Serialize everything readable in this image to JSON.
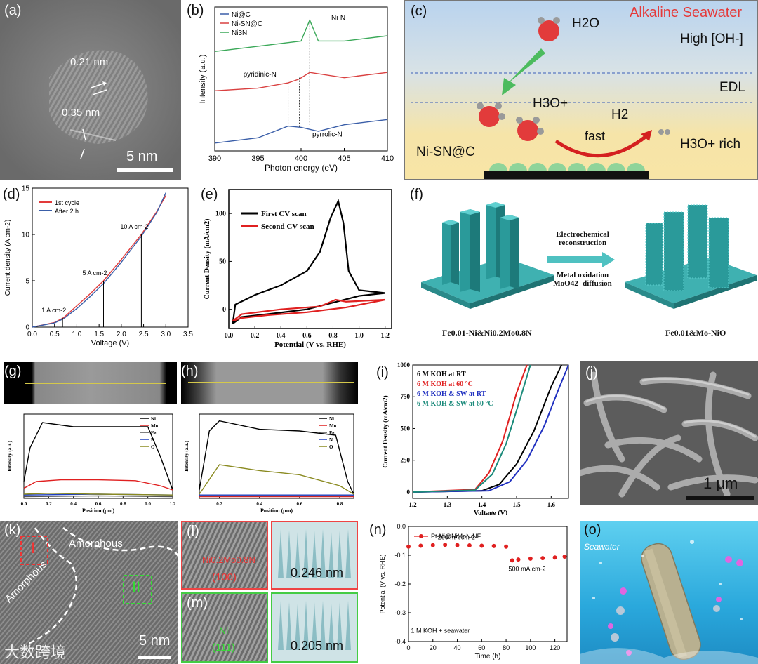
{
  "panels": {
    "a": {
      "label": "(a)",
      "spacing1": "0.21 nm",
      "spacing2": "0.35 nm",
      "scale": "5 nm"
    },
    "b": {
      "label": "(b)",
      "legend": [
        "Ni@C",
        "Ni-SN@C",
        "Ni3N"
      ],
      "annotations": [
        "Ni-N",
        "pyridinic-N",
        "pyrrolic-N"
      ],
      "xlabel": "Photon energy (eV)",
      "ylabel": "Intensity (a.u.)",
      "xticks": [
        "390",
        "395",
        "400",
        "405",
        "410"
      ]
    },
    "c": {
      "label": "(c)",
      "title": "Alkaline Seawater",
      "h2o": "H2O",
      "high_oh": "High [OH-]",
      "edl": "EDL",
      "h3o": "H3O+",
      "h2": "H2",
      "fast": "fast",
      "catalyst": "Ni-SN@C",
      "h3o_rich": "H3O+ rich"
    },
    "d": {
      "label": "(d)",
      "legend": [
        "1st cycle",
        "After 2 h"
      ],
      "annotations": [
        "10 A cm-2",
        "5 A cm-2",
        "1 A cm-2"
      ],
      "xlabel": "Voltage (V)",
      "ylabel": "Current density (A cm-2)",
      "xticks": [
        "0.0",
        "0.5",
        "1.0",
        "1.5",
        "2.0",
        "2.5",
        "3.0",
        "3.5"
      ],
      "yticks": [
        "0",
        "5",
        "10",
        "15"
      ]
    },
    "e": {
      "label": "(e)",
      "legend": [
        "First CV scan",
        "Second CV scan"
      ],
      "xlabel": "Potential (V vs. RHE)",
      "ylabel": "Current Density (mA/cm2)",
      "xticks": [
        "0.0",
        "0.2",
        "0.4",
        "0.6",
        "0.8",
        "1.0",
        "1.2"
      ],
      "yticks": [
        "0",
        "50",
        "100"
      ]
    },
    "f": {
      "label": "(f)",
      "arrow_top": "Electrochemical reconstruction",
      "arrow_bottom": "Metal oxidation MoO42- diffusion",
      "left_caption": "Fe0.01-Ni&Ni0.2Mo0.8N",
      "right_caption": "Fe0.01&Mo-NiO"
    },
    "g": {
      "label": "(g)",
      "legend": [
        "Ni",
        "Mo",
        "Fe",
        "N",
        "O"
      ],
      "xlabel": "Position (μm)",
      "ylabel": "Intensity (a.u.)",
      "xticks": [
        "0.0",
        "0.2",
        "0.4",
        "0.6",
        "0.8",
        "1.0",
        "1.2"
      ]
    },
    "h": {
      "label": "(h)",
      "legend": [
        "Ni",
        "Mo",
        "Fe",
        "N",
        "O"
      ],
      "xlabel": "Position (μm)",
      "ylabel": "Intensity (a.u.)",
      "xticks": [
        "0.2",
        "0.4",
        "0.6",
        "0.8"
      ]
    },
    "i": {
      "label": "(i)",
      "legend": [
        "6 M KOH at RT",
        "6 M KOH at 60 °C",
        "6 M KOH & SW at RT",
        "6 M KOH & SW at 60 °C"
      ],
      "xlabel": "Voltage (V)",
      "ylabel": "Current Density (mA/cm2)",
      "xticks": [
        "1.2",
        "1.3",
        "1.4",
        "1.5",
        "1.6"
      ],
      "yticks": [
        "0",
        "250",
        "500",
        "750",
        "1000"
      ]
    },
    "j": {
      "label": "(j)",
      "scale": "1 μm"
    },
    "k": {
      "label": "(k)",
      "amorphous1": "Amorphous",
      "amorphous2": "Amorphous",
      "box1": "I",
      "box2": "II",
      "scale": "5 nm"
    },
    "l": {
      "label": "(l)",
      "phase": "Ni0.2Mo0.8N",
      "plane": "(100)",
      "spacing": "0.246 nm"
    },
    "m": {
      "label": "(m)",
      "phase": "Ni",
      "plane": "(111)",
      "spacing": "0.205 nm"
    },
    "n": {
      "label": "(n)",
      "legend": "Pt-Ni@NiMoN/NF",
      "ann1": "200 mA cm-2",
      "ann2": "500 mA cm-2",
      "electrolyte": "1 M KOH + seawater",
      "xlabel": "Time (h)",
      "ylabel": "Potential (V vs. RHE)",
      "xticks": [
        "0",
        "20",
        "40",
        "60",
        "80",
        "100",
        "120"
      ],
      "yticks": [
        "0.0",
        "-0.1",
        "-0.2",
        "-0.3",
        "-0.4"
      ]
    },
    "o": {
      "label": "(o)",
      "seawater": "Seawater"
    }
  },
  "watermark": "大数跨境",
  "chart_data": [
    {
      "panel": "b",
      "type": "line",
      "title": "",
      "xlabel": "Photon energy (eV)",
      "ylabel": "Intensity (a.u.)",
      "xlim": [
        390,
        410
      ],
      "series": [
        {
          "name": "Ni@C",
          "x": [
            390,
            395,
            398.5,
            400,
            402,
            405,
            410
          ],
          "y": [
            0.3,
            0.5,
            0.95,
            0.9,
            0.75,
            1.0,
            1.2
          ]
        },
        {
          "name": "Ni-SN@C",
          "x": [
            390,
            395,
            398.5,
            399.8,
            401,
            405,
            410
          ],
          "y": [
            2.3,
            2.4,
            2.6,
            2.75,
            3.0,
            2.8,
            3.0
          ]
        },
        {
          "name": "Ni3N",
          "x": [
            390,
            395,
            397.5,
            400,
            401,
            402,
            405,
            410
          ],
          "y": [
            3.8,
            4.0,
            4.1,
            4.2,
            5.0,
            4.2,
            4.2,
            4.4
          ]
        }
      ]
    },
    {
      "panel": "d",
      "type": "line",
      "xlabel": "Voltage (V)",
      "ylabel": "Current density (A cm-2)",
      "xlim": [
        0,
        3.5
      ],
      "ylim": [
        0,
        15
      ],
      "series": [
        {
          "name": "1st cycle",
          "x": [
            0,
            0.5,
            0.7,
            1.0,
            1.3,
            1.6,
            2.0,
            2.45,
            2.8,
            3.0
          ],
          "y": [
            0,
            0.5,
            1.0,
            2.3,
            3.6,
            5.0,
            7.3,
            10.0,
            12.5,
            14.2
          ]
        },
        {
          "name": "After 2 h",
          "x": [
            0,
            0.5,
            0.7,
            1.0,
            1.3,
            1.6,
            2.0,
            2.45,
            2.8,
            3.0
          ],
          "y": [
            0,
            0.45,
            0.9,
            2.0,
            3.3,
            4.7,
            7.0,
            9.8,
            12.4,
            14.5
          ]
        }
      ],
      "annotations": [
        {
          "text": "1 A cm-2",
          "x": 0.68,
          "y": 1
        },
        {
          "text": "5 A cm-2",
          "x": 1.6,
          "y": 5
        },
        {
          "text": "10 A cm-2",
          "x": 2.45,
          "y": 10
        }
      ]
    },
    {
      "panel": "e",
      "type": "line",
      "xlabel": "Potential (V vs. RHE)",
      "ylabel": "Current Density (mA/cm2)",
      "xlim": [
        0,
        1.25
      ],
      "ylim": [
        -20,
        125
      ],
      "series": [
        {
          "name": "First CV scan",
          "x": [
            0.03,
            0.05,
            0.2,
            0.4,
            0.6,
            0.7,
            0.78,
            0.84,
            0.88,
            0.92,
            1.0,
            1.2,
            1.0,
            0.6,
            0.3,
            0.1,
            0.03
          ],
          "y": [
            -15,
            5,
            15,
            25,
            40,
            60,
            95,
            113,
            90,
            40,
            20,
            17,
            14,
            0,
            -5,
            -8,
            -15
          ]
        },
        {
          "name": "Second CV scan",
          "x": [
            0.03,
            0.1,
            0.4,
            0.7,
            0.82,
            0.9,
            1.2,
            0.9,
            0.6,
            0.3,
            0.1,
            0.03
          ],
          "y": [
            -12,
            -5,
            0,
            3,
            10,
            8,
            10,
            2,
            -3,
            -6,
            -9,
            -12
          ]
        }
      ]
    },
    {
      "panel": "g",
      "type": "line",
      "xlabel": "Position (μm)",
      "ylabel": "Intensity (a.u.)",
      "xlim": [
        0,
        1.2
      ],
      "series": [
        {
          "name": "Ni",
          "x": [
            0,
            0.05,
            0.15,
            0.4,
            0.7,
            1.0,
            1.1,
            1.2
          ],
          "y": [
            0.2,
            0.6,
            0.9,
            0.85,
            0.85,
            0.85,
            0.5,
            0.1
          ]
        },
        {
          "name": "Mo",
          "x": [
            0,
            0.1,
            0.3,
            0.6,
            0.9,
            1.1,
            1.2
          ],
          "y": [
            0.12,
            0.2,
            0.22,
            0.22,
            0.21,
            0.15,
            0.1
          ]
        },
        {
          "name": "Fe",
          "x": [
            0,
            0.6,
            1.2
          ],
          "y": [
            0.02,
            0.03,
            0.02
          ]
        },
        {
          "name": "N",
          "x": [
            0,
            0.6,
            1.2
          ],
          "y": [
            0.04,
            0.05,
            0.04
          ]
        },
        {
          "name": "O",
          "x": [
            0,
            0.2,
            0.6,
            1.2
          ],
          "y": [
            0.05,
            0.06,
            0.05,
            0.04
          ]
        }
      ]
    },
    {
      "panel": "h",
      "type": "line",
      "xlabel": "Position (μm)",
      "ylabel": "Intensity (a.u.)",
      "xlim": [
        0.1,
        0.87
      ],
      "series": [
        {
          "name": "Ni",
          "x": [
            0.1,
            0.15,
            0.2,
            0.4,
            0.6,
            0.78,
            0.84,
            0.87
          ],
          "y": [
            0.1,
            0.8,
            0.92,
            0.82,
            0.8,
            0.75,
            0.2,
            0.05
          ]
        },
        {
          "name": "Mo",
          "x": [
            0.1,
            0.87
          ],
          "y": [
            0.02,
            0.02
          ]
        },
        {
          "name": "Fe",
          "x": [
            0.1,
            0.87
          ],
          "y": [
            0.03,
            0.03
          ]
        },
        {
          "name": "N",
          "x": [
            0.1,
            0.87
          ],
          "y": [
            0.04,
            0.04
          ]
        },
        {
          "name": "O",
          "x": [
            0.1,
            0.2,
            0.4,
            0.6,
            0.8,
            0.87
          ],
          "y": [
            0.05,
            0.4,
            0.33,
            0.28,
            0.15,
            0.05
          ]
        }
      ]
    },
    {
      "panel": "i",
      "type": "line",
      "xlabel": "Voltage (V)",
      "ylabel": "Current Density (mA/cm2)",
      "xlim": [
        1.2,
        1.65
      ],
      "ylim": [
        -50,
        1000
      ],
      "series": [
        {
          "name": "6 M KOH at RT",
          "x": [
            1.2,
            1.4,
            1.45,
            1.5,
            1.55,
            1.6,
            1.63
          ],
          "y": [
            0,
            10,
            60,
            220,
            480,
            830,
            1000
          ]
        },
        {
          "name": "6 M KOH at 60 °C",
          "x": [
            1.2,
            1.38,
            1.42,
            1.46,
            1.5,
            1.53
          ],
          "y": [
            0,
            20,
            150,
            400,
            780,
            1000
          ]
        },
        {
          "name": "6 M KOH & SW at RT",
          "x": [
            1.2,
            1.42,
            1.48,
            1.53,
            1.58,
            1.62,
            1.65
          ],
          "y": [
            0,
            10,
            80,
            250,
            520,
            800,
            1000
          ]
        },
        {
          "name": "6 M KOH & SW at 60 °C",
          "x": [
            1.2,
            1.38,
            1.43,
            1.47,
            1.51,
            1.54
          ],
          "y": [
            0,
            15,
            140,
            380,
            730,
            1000
          ]
        }
      ]
    },
    {
      "panel": "n",
      "type": "scatter",
      "xlabel": "Time (h)",
      "ylabel": "Potential (V vs. RHE)",
      "xlim": [
        0,
        130
      ],
      "ylim": [
        -0.4,
        0.0
      ],
      "series": [
        {
          "name": "Pt-Ni@NiMoN/NF",
          "x": [
            0,
            10,
            20,
            30,
            40,
            50,
            60,
            70,
            80,
            85,
            90,
            100,
            110,
            120,
            128
          ],
          "y": [
            -0.07,
            -0.067,
            -0.065,
            -0.064,
            -0.065,
            -0.066,
            -0.067,
            -0.068,
            -0.07,
            -0.118,
            -0.115,
            -0.112,
            -0.11,
            -0.108,
            -0.105
          ]
        }
      ],
      "annotations": [
        {
          "text": "200 mA cm-2"
        },
        {
          "text": "500 mA cm-2"
        },
        {
          "text": "1 M KOH + seawater"
        }
      ]
    }
  ]
}
